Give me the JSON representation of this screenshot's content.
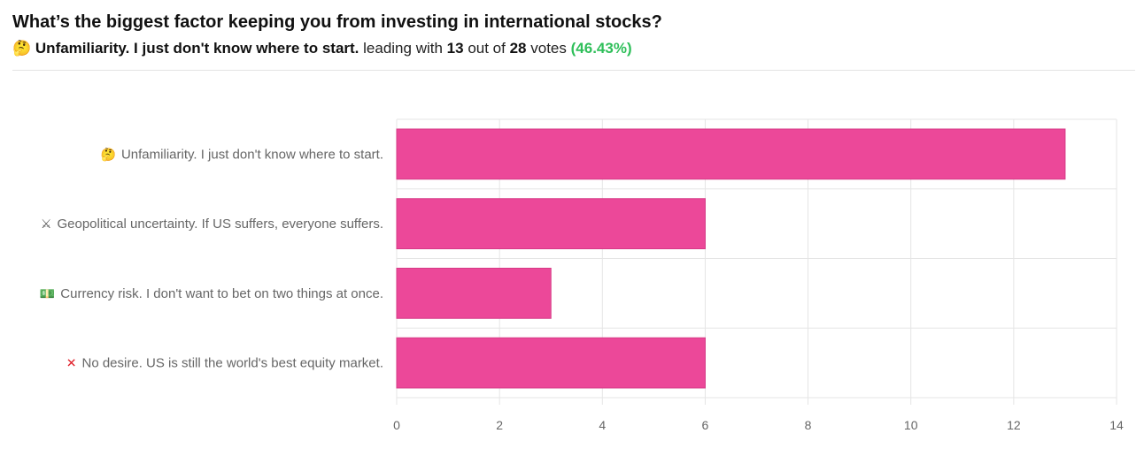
{
  "poll": {
    "question": "What’s the biggest factor keeping you from investing in international stocks?",
    "leader_emoji": "🤔",
    "leader_text": "Unfamiliarity. I just don't know where to start.",
    "leading_with": "leading with",
    "leader_votes": "13",
    "out_of": "out of",
    "total_votes": "28",
    "votes_word": "votes",
    "leader_pct": "(46.43%)"
  },
  "colors": {
    "bar": "#ec4899",
    "grid": "#e5e5e5",
    "accent_green": "#2fbf5a",
    "x_mark_red": "#e0202a"
  },
  "chart_data": {
    "type": "bar",
    "orientation": "horizontal",
    "categories": [
      "Unfamiliarity. I just don't know where to start.",
      "Geopolitical uncertainty. If US suffers, everyone suffers.",
      "Currency risk. I don't want to bet on two things at once.",
      "No desire. US is still the world's best equity market."
    ],
    "category_icons": [
      "thinking-face-icon",
      "crossed-swords-icon",
      "banknote-icon",
      "red-x-icon"
    ],
    "category_glyphs": [
      "🤔",
      "⚔",
      "💵",
      "✕"
    ],
    "values": [
      13,
      6,
      3,
      6
    ],
    "xlim": [
      0,
      14
    ],
    "xticks": [
      0,
      2,
      4,
      6,
      8,
      10,
      12,
      14
    ],
    "grid": true,
    "legend": "none"
  }
}
